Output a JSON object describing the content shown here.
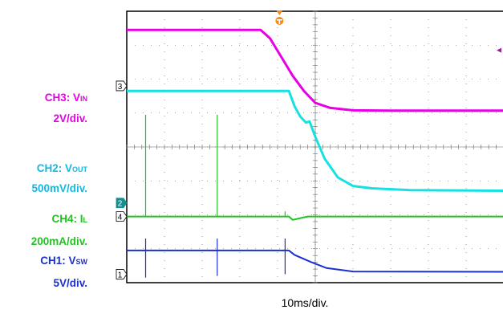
{
  "chart_data": {
    "type": "line",
    "x_label": "10ms/div.",
    "x_unit_per_div": "10ms",
    "divisions": {
      "x": 10,
      "y": 8
    },
    "grid": true,
    "series": [
      {
        "name": "CH3: VIN",
        "color": "#e600e6",
        "name_main": "CH3: V",
        "name_sub": "IN",
        "scale": "2V/div.",
        "marker": "3",
        "points": [
          [
            0,
            7.45
          ],
          [
            3.55,
            7.45
          ],
          [
            3.8,
            7.2
          ],
          [
            4.1,
            6.65
          ],
          [
            4.4,
            6.1
          ],
          [
            4.7,
            5.65
          ],
          [
            5.0,
            5.3
          ],
          [
            5.4,
            5.15
          ],
          [
            6.0,
            5.08
          ],
          [
            7.0,
            5.07
          ],
          [
            10,
            5.07
          ]
        ]
      },
      {
        "name": "CH2: VOUT",
        "color": "#17e0e0",
        "name_main": "CH2: V",
        "name_sub": "OUT",
        "scale": "500mV/div.",
        "marker": "2",
        "points": [
          [
            0,
            5.65
          ],
          [
            4.3,
            5.65
          ],
          [
            4.45,
            5.2
          ],
          [
            4.6,
            4.9
          ],
          [
            4.75,
            4.72
          ],
          [
            4.85,
            4.75
          ],
          [
            5.0,
            4.3
          ],
          [
            5.25,
            3.65
          ],
          [
            5.6,
            3.1
          ],
          [
            6.0,
            2.85
          ],
          [
            6.5,
            2.78
          ],
          [
            7.5,
            2.73
          ],
          [
            10,
            2.71
          ]
        ]
      },
      {
        "name": "CH4: IL",
        "color": "#22c222",
        "name_main": "CH4: I",
        "name_sub": "L",
        "scale": "200mA/div.",
        "marker": "4",
        "baseline": 1.95,
        "spikes": [
          [
            0.5,
            4.95
          ],
          [
            2.4,
            4.95
          ],
          [
            4.2,
            2.1
          ]
        ],
        "points": [
          [
            0,
            1.95
          ],
          [
            4.3,
            1.95
          ],
          [
            4.4,
            1.85
          ],
          [
            4.8,
            1.95
          ],
          [
            10,
            1.95
          ]
        ]
      },
      {
        "name": "CH1: VSW",
        "color": "#1c2fd0",
        "name_main": "CH1: V",
        "name_sub": "SW",
        "scale": "5V/div.",
        "marker": "1",
        "spikes": [
          [
            0.5,
            0.15,
            1.3
          ],
          [
            2.4,
            0.2,
            1.3
          ],
          [
            4.2,
            0.25,
            1.3
          ]
        ],
        "points": [
          [
            0,
            0.95
          ],
          [
            4.3,
            0.95
          ],
          [
            4.45,
            0.82
          ],
          [
            4.9,
            0.6
          ],
          [
            5.3,
            0.43
          ],
          [
            6.0,
            0.33
          ],
          [
            10,
            0.32
          ]
        ]
      }
    ]
  }
}
